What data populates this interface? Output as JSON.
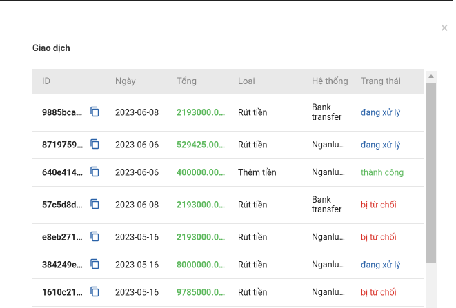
{
  "dialog": {
    "title": "Giao dịch",
    "close": "×",
    "table": {
      "headers": [
        "ID",
        "Ngày",
        "Tổng",
        "Loại",
        "Hệ thống",
        "Trạng thái"
      ],
      "rows": [
        [
          "9885bca…",
          "2023-06-08",
          "2193000.0…",
          "Rút tiền",
          "Bank transfer",
          "đang xử lý"
        ],
        [
          "8719759…",
          "2023-06-06",
          "529425.00…",
          "Rút tiền",
          "Nganlu…",
          "đang xử lý"
        ],
        [
          "640e414…",
          "2023-06-06",
          "400000.00…",
          "Thêm tiền",
          "Nganlu…",
          "thành công"
        ],
        [
          "57c5d8d…",
          "2023-06-08",
          "2193000.0…",
          "Rút tiền",
          "Bank transfer",
          "bị từ chối"
        ],
        [
          "e8eb271…",
          "2023-05-16",
          "2193000.0…",
          "Rút tiền",
          "Nganlu…",
          "bị từ chối"
        ],
        [
          "384249e…",
          "2023-05-16",
          "8000000.0…",
          "Rút tiền",
          "Nganlu…",
          "đang xử lý"
        ],
        [
          "1610c21…",
          "2023-05-16",
          "9785000.0…",
          "Rút tiền",
          "Nganlu…",
          "bị từ chối"
        ]
      ]
    }
  }
}
